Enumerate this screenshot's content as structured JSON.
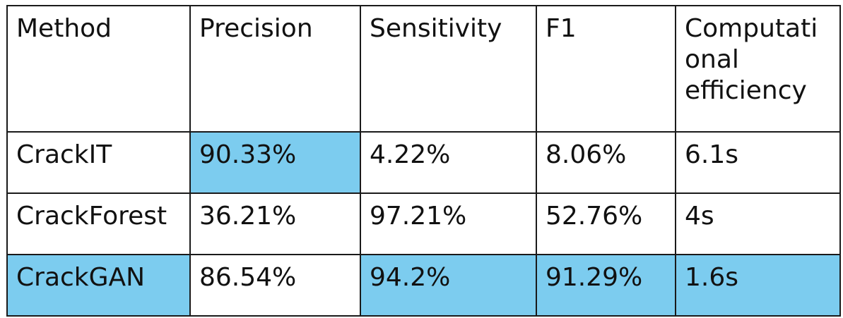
{
  "table": {
    "headers": [
      "Method",
      "Precision",
      "Sensitivity",
      "F1",
      "Computational efficiency"
    ],
    "header_lines": {
      "efficiency": [
        "Computati",
        "onal",
        "efficiency"
      ]
    },
    "rows": [
      {
        "method": "CrackIT",
        "precision": "90.33%",
        "sensitivity": "4.22%",
        "f1": "8.06%",
        "efficiency": "6.1s"
      },
      {
        "method": "CrackForest",
        "precision": "36.21%",
        "sensitivity": "97.21%",
        "f1": "52.76%",
        "efficiency": "4s"
      },
      {
        "method": "CrackGAN",
        "precision": "86.54%",
        "sensitivity": "94.2%",
        "f1": "91.29%",
        "efficiency": "1.6s"
      }
    ]
  },
  "colors": {
    "highlight": "#7cccef",
    "border": "#1a1a1a",
    "text": "#111111"
  }
}
